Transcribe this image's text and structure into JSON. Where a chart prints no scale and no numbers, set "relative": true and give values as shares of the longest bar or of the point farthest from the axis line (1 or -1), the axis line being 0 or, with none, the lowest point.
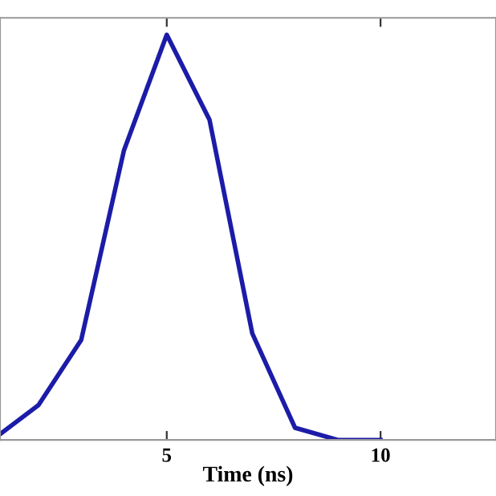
{
  "chart_data": {
    "type": "line",
    "xlabel": "Time (ns)",
    "x": [
      1.1,
      2,
      3,
      4,
      5,
      6,
      7,
      8,
      9,
      10
    ],
    "series": [
      {
        "color": "#1c1ca8",
        "values": [
          0.014,
          0.086,
          0.247,
          0.715,
          1,
          0.79,
          0.263,
          0.03,
          0,
          0
        ]
      }
    ],
    "relative": true,
    "xlim": [
      1.1,
      12.7
    ],
    "xticks": [
      5,
      10
    ],
    "grid": false,
    "marker": "none",
    "line_style": "solid"
  }
}
